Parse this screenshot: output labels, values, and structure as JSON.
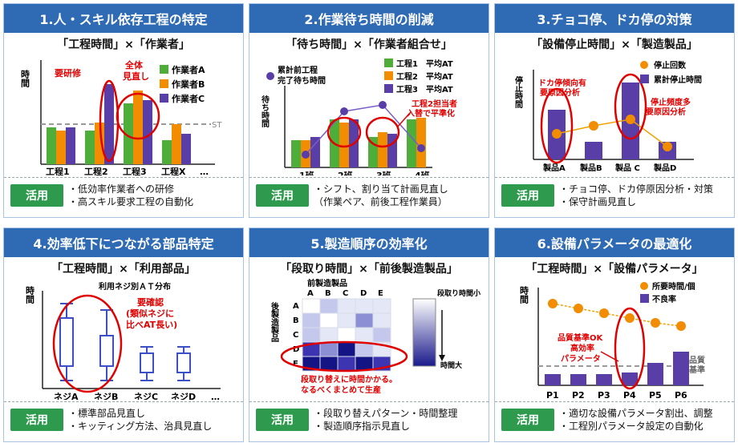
{
  "panels": [
    {
      "title": "1.人・スキル依存工程の特定",
      "subtitle": "「工程時間」×「作業者」",
      "usage_button": "活用",
      "usage": [
        "・低効率作業者への研修",
        "・高スキル要求工程の自動化"
      ],
      "chart": {
        "ylabel": "時間",
        "categories": [
          "工程1",
          "工程2",
          "工程3",
          "工程X",
          "…"
        ],
        "legend": [
          "作業者A",
          "作業者B",
          "作業者C"
        ],
        "st_label": "ST",
        "annotations": [
          "要研修",
          "全体",
          "見直し"
        ]
      }
    },
    {
      "title": "2.作業待ち時間の削減",
      "subtitle": "「待ち時間」×「作業者組合せ」",
      "usage_button": "活用",
      "usage": [
        "・シフト、割り当て計画見直し",
        "（作業ペア、前後工程作業員）"
      ],
      "chart": {
        "ylabel": "待ち時間",
        "categories": [
          "1班",
          "2班",
          "3班",
          "4班"
        ],
        "legend_point": "累計前工程",
        "legend_point2": "完了待ち時間",
        "legend": [
          "工程1　平均AT",
          "工程2　平均AT",
          "工程3　平均AT"
        ],
        "annotations": [
          "工程2担当者",
          "入替で平準化"
        ]
      }
    },
    {
      "title": "3.チョコ停、ドカ停の対策",
      "subtitle": "「設備停止時間」×「製造製品」",
      "usage_button": "活用",
      "usage": [
        "・チョコ停、ドカ停原因分析・対策",
        "・保守計画見直し"
      ],
      "chart": {
        "ylabel": "停止時間",
        "categories": [
          "製品A",
          "製品B",
          "製品 C",
          "製品D"
        ],
        "legend": [
          "停止回数",
          "累計停止時間"
        ],
        "annotations": [
          "ドカ停傾向有",
          "要原因分析",
          "停止頻度多",
          "要原因分析"
        ]
      }
    },
    {
      "title": "4.効率低下につながる部品特定",
      "subtitle": "「工程時間」×「利用部品」",
      "usage_button": "活用",
      "usage": [
        "・標準部品見直し",
        "・キッティング方法、治具見直し"
      ],
      "chart": {
        "ylabel": "時間",
        "chart_title": "利用ネジ別ＡＴ分布",
        "categories": [
          "ネジA",
          "ネジB",
          "ネジC",
          "ネジD",
          "…"
        ],
        "annotations": [
          "要確認",
          "(類似ネジに",
          "比べAT長い)"
        ]
      }
    },
    {
      "title": "5.製造順序の効率化",
      "subtitle": "「段取り時間」×「前後製造製品」",
      "usage_button": "活用",
      "usage": [
        "・段取り替えパターン・時間整理",
        "・製造順序指示見直し"
      ],
      "chart": {
        "top_label": "前製造製品",
        "cols": [
          "A",
          "B",
          "C",
          "D",
          "E"
        ],
        "side_label": "後製造製品",
        "rows": [
          "A",
          "B",
          "C",
          "D",
          "E"
        ],
        "scale_high": "段取り時間小",
        "scale_low": "時間大",
        "annotations": [
          "段取り替えに時間かかる。",
          "なるべくまとめて生産"
        ]
      }
    },
    {
      "title": "6.設備パラメータの最適化",
      "subtitle": "「工程時間」×「設備パラメータ」",
      "usage_button": "活用",
      "usage": [
        "・適切な設備パラメータ割出、調整",
        "・工程別パラメータ設定の自動化"
      ],
      "chart": {
        "ylabel": "時間",
        "categories": [
          "P1",
          "P2",
          "P3",
          "P4",
          "P5",
          "P6"
        ],
        "legend": [
          "所要時間/個",
          "不良率"
        ],
        "threshold": [
          "品質",
          "基準"
        ],
        "annotations": [
          "品質基準OK",
          "高効率",
          "パラメータ"
        ]
      }
    }
  ],
  "colors": {
    "header": "#2f6bb5",
    "usage_button": "#2e9a4e",
    "green": "#4fae3a",
    "orange": "#f28c00",
    "purple": "#5a3ea8",
    "red": "#e00000"
  }
}
